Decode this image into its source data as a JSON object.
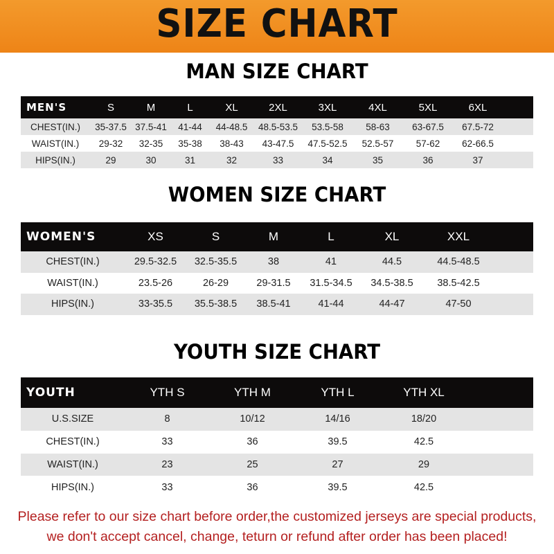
{
  "banner": {
    "title": "SIZE CHART"
  },
  "men": {
    "title": "MAN SIZE CHART",
    "header": [
      "MEN'S",
      "S",
      "M",
      "L",
      "XL",
      "2XL",
      "3XL",
      "4XL",
      "5XL",
      "6XL"
    ],
    "rows": [
      [
        "CHEST(IN.)",
        "35-37.5",
        "37.5-41",
        "41-44",
        "44-48.5",
        "48.5-53.5",
        "53.5-58",
        "58-63",
        "63-67.5",
        "67.5-72"
      ],
      [
        "WAIST(IN.)",
        "29-32",
        "32-35",
        "35-38",
        "38-43",
        "43-47.5",
        "47.5-52.5",
        "52.5-57",
        "57-62",
        "62-66.5"
      ],
      [
        "HIPS(IN.)",
        "29",
        "30",
        "31",
        "32",
        "33",
        "34",
        "35",
        "36",
        "37"
      ]
    ]
  },
  "women": {
    "title": "WOMEN SIZE CHART",
    "header": [
      "WOMEN'S",
      "XS",
      "S",
      "M",
      "L",
      "XL",
      "XXL"
    ],
    "rows": [
      [
        "CHEST(IN.)",
        "29.5-32.5",
        "32.5-35.5",
        "38",
        "41",
        "44.5",
        "44.5-48.5"
      ],
      [
        "WAIST(IN.)",
        "23.5-26",
        "26-29",
        "29-31.5",
        "31.5-34.5",
        "34.5-38.5",
        "38.5-42.5"
      ],
      [
        "HIPS(IN.)",
        "33-35.5",
        "35.5-38.5",
        "38.5-41",
        "41-44",
        "44-47",
        "47-50"
      ]
    ]
  },
  "youth": {
    "title": "YOUTH SIZE CHART",
    "header": [
      "YOUTH",
      "YTH S",
      "YTH M",
      "YTH L",
      "YTH XL"
    ],
    "rows": [
      [
        "U.S.SIZE",
        "8",
        "10/12",
        "14/16",
        "18/20"
      ],
      [
        "CHEST(IN.)",
        "33",
        "36",
        "39.5",
        "42.5"
      ],
      [
        "WAIST(IN.)",
        "23",
        "25",
        "27",
        "29"
      ],
      [
        "HIPS(IN.)",
        "33",
        "36",
        "39.5",
        "42.5"
      ]
    ]
  },
  "footer": {
    "line1": "Please refer to our size chart before order,the customized jerseys are special products,",
    "line2": "we don't accept cancel, change, teturn or refund after order has been placed!"
  },
  "colors": {
    "banner": "#ee8417",
    "header_row": "#0d0b0b",
    "stripe": "#e4e4e4",
    "notice": "#b42020"
  }
}
